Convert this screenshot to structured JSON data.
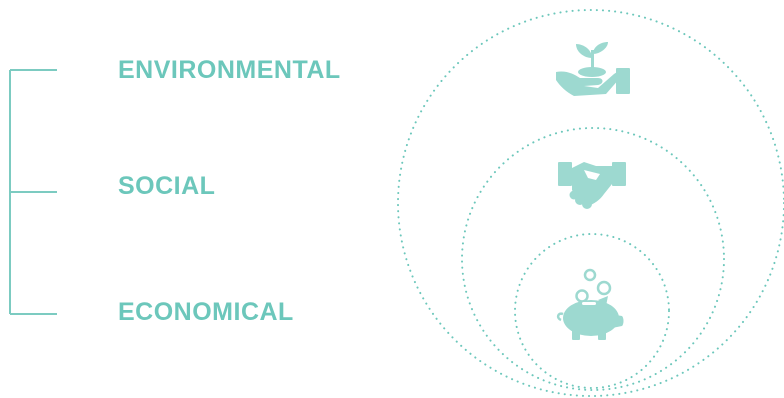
{
  "labels": {
    "environmental": "ENVIRONMENTAL",
    "social": "SOCIAL",
    "economical": "ECONOMICAL"
  },
  "icons": {
    "environmental": "hand-with-sprout-icon",
    "social": "handshake-icon",
    "economical": "piggy-bank-icon"
  },
  "colors": {
    "accent": "#6cc7bb",
    "icon": "#9dd9d0",
    "bracket": "#7ccbc1"
  }
}
